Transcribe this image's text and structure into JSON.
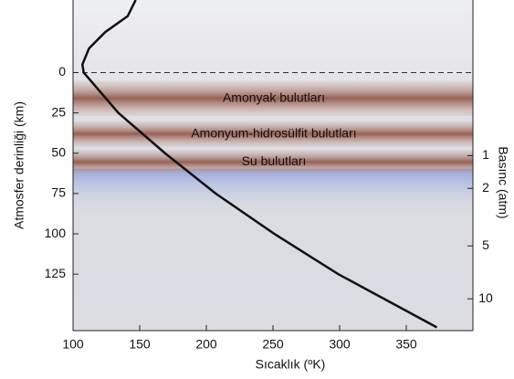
{
  "chart_data": {
    "type": "line",
    "x_label": "Sıcaklık (ºK)",
    "y_label": "Atmosfer derinliği (km)",
    "y2_label": "Basınc (atm)",
    "xlim": [
      100,
      400
    ],
    "xticks": [
      100,
      150,
      200,
      250,
      300,
      350
    ],
    "ylim": [
      160,
      -45
    ],
    "yticks": [
      0,
      25,
      50,
      75,
      100,
      125
    ],
    "reference_line": 0,
    "pressure_ticks": [
      {
        "pressure": 1,
        "depth": 51.5
      },
      {
        "pressure": 2,
        "depth": 71.8
      },
      {
        "pressure": 5,
        "depth": 107.5
      },
      {
        "pressure": 10,
        "depth": 140.3
      }
    ],
    "clouds": [
      {
        "label": "Amonyak bulutları",
        "top": 5,
        "bottom": 27
      },
      {
        "label": "Amonyum-hidrosülfit bulutları",
        "top": 30,
        "bottom": 46
      },
      {
        "label": "Su bulutları",
        "top": 48,
        "bottom": 63
      }
    ],
    "series": [
      {
        "color": "#111111",
        "x": [
          147,
          141,
          124,
          112,
          107,
          108,
          134,
          169,
          207,
          251,
          299,
          373
        ],
        "values": [
          -45,
          -35,
          -25,
          -15,
          -5,
          0,
          25,
          50,
          75,
          100,
          125,
          158
        ]
      }
    ]
  }
}
